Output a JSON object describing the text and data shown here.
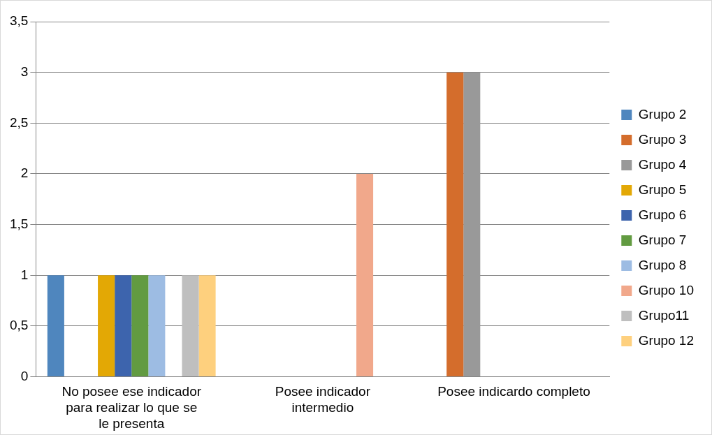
{
  "chart_data": {
    "type": "bar",
    "categories": [
      "No posee ese indicador para realizar lo que se le presenta",
      "Posee indicador intermedio",
      "Posee indicardo completo"
    ],
    "series": [
      {
        "name": "Grupo 2",
        "color": "#4f86be",
        "values": [
          1,
          0,
          0
        ]
      },
      {
        "name": "Grupo 3",
        "color": "#d46d2c",
        "values": [
          0,
          0,
          3
        ]
      },
      {
        "name": "Grupo 4",
        "color": "#999999",
        "values": [
          0,
          0,
          3
        ]
      },
      {
        "name": "Grupo 5",
        "color": "#e3a805",
        "values": [
          1,
          0,
          0
        ]
      },
      {
        "name": "Grupo 6",
        "color": "#3d64ad",
        "values": [
          1,
          0,
          0
        ]
      },
      {
        "name": "Grupo 7",
        "color": "#629b41",
        "values": [
          1,
          0,
          0
        ]
      },
      {
        "name": "Grupo 8",
        "color": "#9dbce3",
        "values": [
          1,
          0,
          0
        ]
      },
      {
        "name": "Grupo 10",
        "color": "#f1a88b",
        "values": [
          0,
          2,
          0
        ]
      },
      {
        "name": "Grupo11",
        "color": "#bfbfbf",
        "values": [
          1,
          0,
          0
        ]
      },
      {
        "name": "Grupo 12",
        "color": "#fed07e",
        "values": [
          1,
          0,
          0
        ]
      }
    ],
    "ylim": [
      0,
      3.5
    ],
    "yticks": [
      {
        "value": 0,
        "label": "0"
      },
      {
        "value": 0.5,
        "label": "0,5"
      },
      {
        "value": 1,
        "label": "1"
      },
      {
        "value": 1.5,
        "label": "1,5"
      },
      {
        "value": 2,
        "label": "2"
      },
      {
        "value": 2.5,
        "label": "2,5"
      },
      {
        "value": 3,
        "label": "3"
      },
      {
        "value": 3.5,
        "label": "3,5"
      }
    ],
    "grid": "y",
    "legend": "right"
  }
}
